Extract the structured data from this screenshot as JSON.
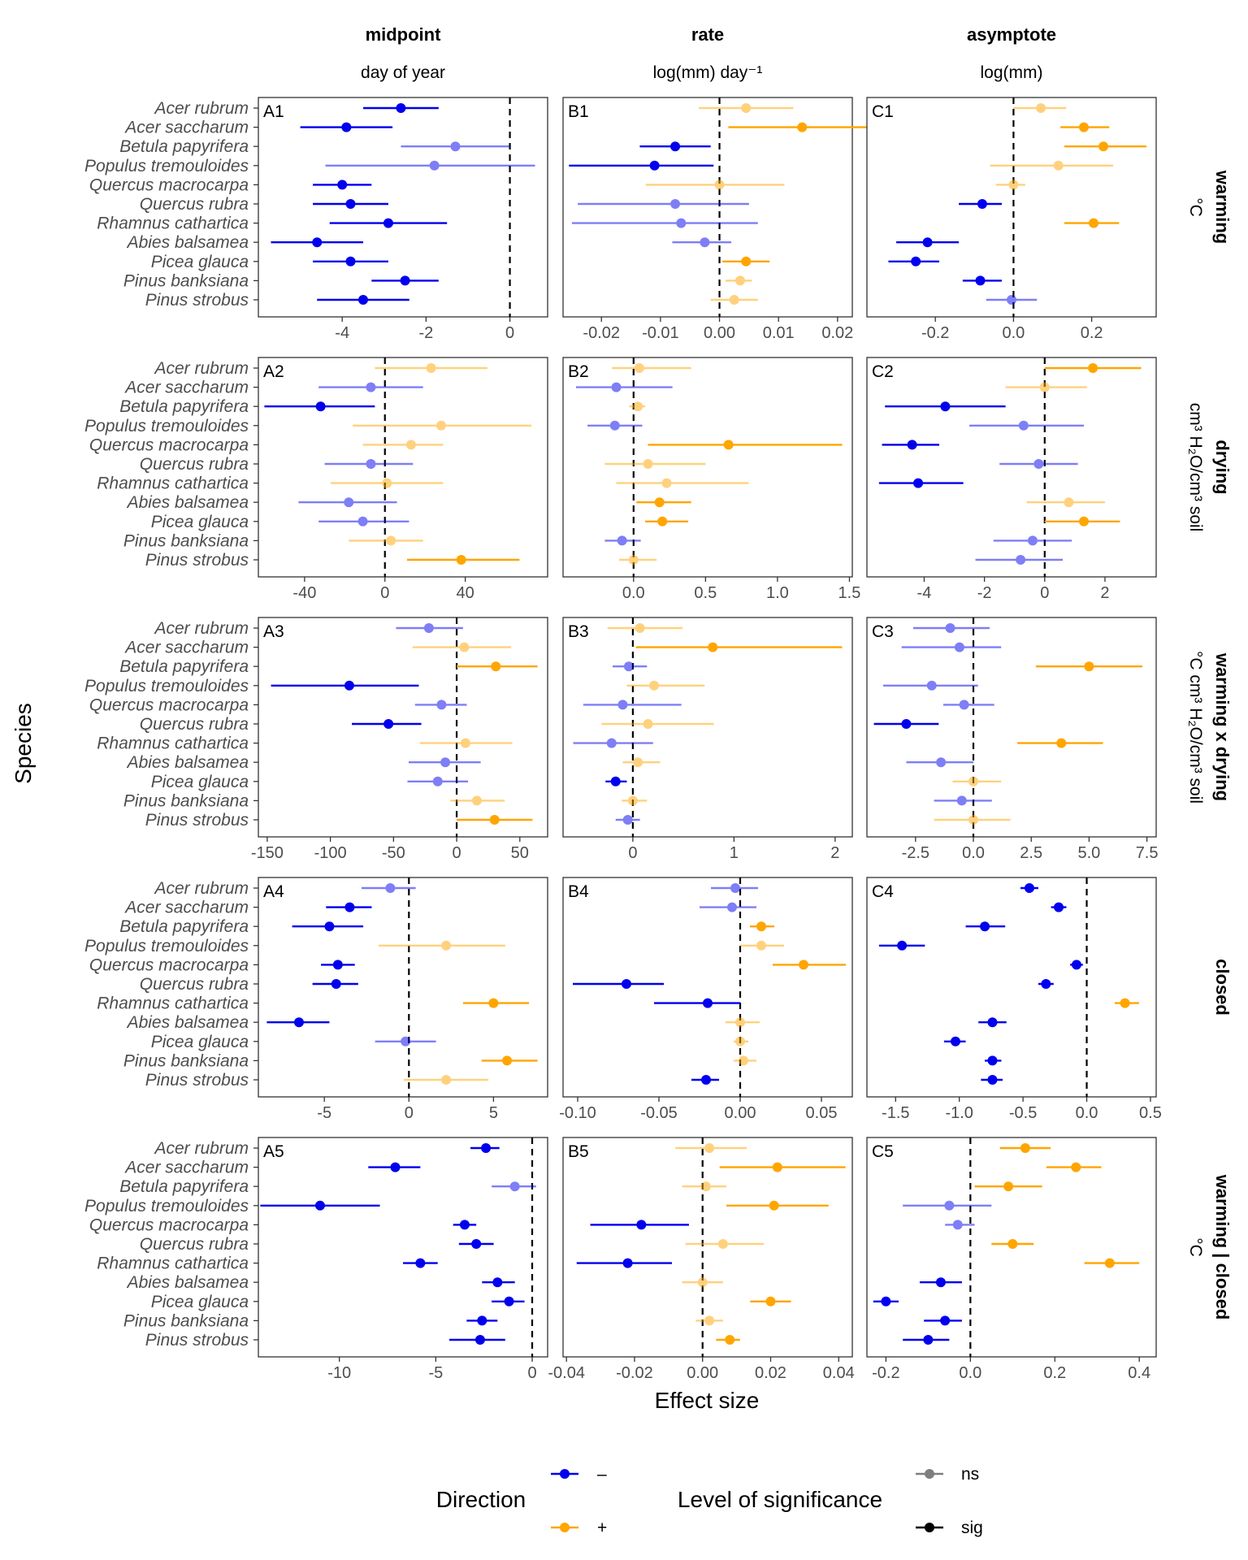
{
  "colors": {
    "neg": "#0000ee",
    "pos": "#ffa500",
    "ns_opacity": 0.5
  },
  "columns": [
    {
      "title": "midpoint",
      "unit": "day of year"
    },
    {
      "title": "rate",
      "unit": "log(mm) day⁻¹"
    },
    {
      "title": "asymptote",
      "unit": "log(mm)"
    }
  ],
  "rows": [
    {
      "title": "warming",
      "unit": "°C"
    },
    {
      "title": "drying",
      "unit": "cm³ H₂O/cm³ soil"
    },
    {
      "title": "warming x drying",
      "unit": "°C cm³ H₂O/cm³ soil"
    },
    {
      "title": "closed",
      "unit": ""
    },
    {
      "title": "warming | closed",
      "unit": "°C"
    }
  ],
  "species": [
    "Acer rubrum",
    "Acer saccharum",
    "Betula papyrifera",
    "Populus tremouloides",
    "Quercus macrocarpa",
    "Quercus rubra",
    "Rhamnus cathartica",
    "Abies balsamea",
    "Picea glauca",
    "Pinus banksiana",
    "Pinus strobus"
  ],
  "axis_labels": {
    "x": "Effect size",
    "y": "Species"
  },
  "legend": {
    "direction_title": "Direction",
    "direction_items": [
      "–",
      "+"
    ],
    "significance_title": "Level of significance",
    "significance_items": [
      "ns",
      "sig"
    ]
  },
  "chart_data": [
    {
      "label": "A1",
      "row": 0,
      "col": 0,
      "type": "scatter",
      "xlim": [
        -6.0,
        0.9
      ],
      "ticks": [
        -4,
        -2,
        0
      ],
      "tick_labels": [
        "-4",
        "-2",
        "0"
      ],
      "zero": 0,
      "points": [
        [
          -2.6,
          -3.5,
          -1.7,
          1
        ],
        [
          -3.9,
          -5.0,
          -2.8,
          1
        ],
        [
          -1.3,
          -2.6,
          0.0,
          0
        ],
        [
          -1.8,
          -4.4,
          0.6,
          0
        ],
        [
          -4.0,
          -4.7,
          -3.3,
          1
        ],
        [
          -3.8,
          -4.7,
          -2.9,
          1
        ],
        [
          -2.9,
          -4.3,
          -1.5,
          1
        ],
        [
          -4.6,
          -5.7,
          -3.5,
          1
        ],
        [
          -3.8,
          -4.7,
          -2.9,
          1
        ],
        [
          -2.5,
          -3.3,
          -1.7,
          1
        ],
        [
          -3.5,
          -4.6,
          -2.4,
          1
        ]
      ]
    },
    {
      "label": "B1",
      "row": 0,
      "col": 1,
      "type": "scatter",
      "xlim": [
        -0.0265,
        0.0225
      ],
      "ticks": [
        -0.02,
        -0.01,
        0,
        0.01,
        0.02
      ],
      "tick_labels": [
        "-0.02",
        "-0.01",
        "0.00",
        "0.01",
        "0.02"
      ],
      "zero": 0,
      "points": [
        [
          0.0045,
          -0.0035,
          0.0125,
          0
        ],
        [
          0.014,
          0.0015,
          0.025,
          1
        ],
        [
          -0.0075,
          -0.0135,
          -0.0015,
          1
        ],
        [
          -0.011,
          -0.0255,
          -0.001,
          1
        ],
        [
          0.0,
          -0.0125,
          0.011,
          0
        ],
        [
          -0.0075,
          -0.024,
          0.005,
          0
        ],
        [
          -0.0065,
          -0.025,
          0.0065,
          0
        ],
        [
          -0.0025,
          -0.008,
          0.002,
          0
        ],
        [
          0.0045,
          0.0005,
          0.0085,
          1
        ],
        [
          0.0035,
          0.001,
          0.0055,
          0
        ],
        [
          0.0025,
          -0.0015,
          0.0065,
          0
        ]
      ]
    },
    {
      "label": "C1",
      "row": 0,
      "col": 2,
      "type": "scatter",
      "xlim": [
        -0.375,
        0.365
      ],
      "ticks": [
        -0.2,
        0,
        0.2
      ],
      "tick_labels": [
        "-0.2",
        "0.0",
        "0.2"
      ],
      "zero": 0,
      "points": [
        [
          0.07,
          0.0,
          0.135,
          0
        ],
        [
          0.18,
          0.12,
          0.245,
          1
        ],
        [
          0.23,
          0.13,
          0.34,
          1
        ],
        [
          0.115,
          -0.06,
          0.255,
          0
        ],
        [
          0.0,
          -0.045,
          0.03,
          0
        ],
        [
          -0.08,
          -0.14,
          -0.03,
          1
        ],
        [
          0.205,
          0.13,
          0.27,
          1
        ],
        [
          -0.22,
          -0.3,
          -0.14,
          1
        ],
        [
          -0.25,
          -0.32,
          -0.19,
          1
        ],
        [
          -0.085,
          -0.13,
          -0.03,
          1
        ],
        [
          -0.005,
          -0.07,
          0.06,
          0
        ]
      ]
    },
    {
      "label": "A2",
      "row": 1,
      "col": 0,
      "type": "scatter",
      "xlim": [
        -63,
        81
      ],
      "ticks": [
        -40,
        0,
        40
      ],
      "tick_labels": [
        "-40",
        "0",
        "40"
      ],
      "zero": 0,
      "points": [
        [
          23,
          -5,
          51,
          0
        ],
        [
          -7,
          -33,
          19,
          0
        ],
        [
          -32,
          -60,
          -5,
          1
        ],
        [
          28,
          -16,
          73,
          0
        ],
        [
          13,
          -11,
          29,
          0
        ],
        [
          -7,
          -30,
          14,
          0
        ],
        [
          1,
          -27,
          29,
          0
        ],
        [
          -18,
          -43,
          6,
          0
        ],
        [
          -11,
          -33,
          12,
          0
        ],
        [
          3,
          -18,
          19,
          0
        ],
        [
          38,
          11,
          67,
          1
        ]
      ]
    },
    {
      "label": "B2",
      "row": 1,
      "col": 1,
      "type": "scatter",
      "xlim": [
        -0.49,
        1.52
      ],
      "ticks": [
        0,
        0.5,
        1.0,
        1.5
      ],
      "tick_labels": [
        "0.0",
        "0.5",
        "1.0",
        "1.5"
      ],
      "zero": 0,
      "points": [
        [
          0.04,
          -0.15,
          0.4,
          0
        ],
        [
          -0.12,
          -0.4,
          0.27,
          0
        ],
        [
          0.03,
          -0.03,
          0.08,
          0
        ],
        [
          -0.13,
          -0.32,
          0.06,
          0
        ],
        [
          0.66,
          0.1,
          1.45,
          1
        ],
        [
          0.1,
          -0.2,
          0.5,
          0
        ],
        [
          0.23,
          -0.12,
          0.8,
          0
        ],
        [
          0.18,
          0.02,
          0.4,
          1
        ],
        [
          0.2,
          0.08,
          0.38,
          1
        ],
        [
          -0.08,
          -0.2,
          0.05,
          0
        ],
        [
          0.0,
          -0.1,
          0.16,
          0
        ]
      ]
    },
    {
      "label": "C2",
      "row": 1,
      "col": 2,
      "type": "scatter",
      "xlim": [
        -5.9,
        3.7
      ],
      "ticks": [
        -4,
        -2,
        0,
        2
      ],
      "tick_labels": [
        "-4",
        "-2",
        "0",
        "2"
      ],
      "zero": 0,
      "points": [
        [
          1.6,
          0.0,
          3.2,
          1
        ],
        [
          0.0,
          -1.3,
          1.4,
          0
        ],
        [
          -3.3,
          -5.3,
          -1.3,
          1
        ],
        [
          -0.7,
          -2.5,
          1.3,
          0
        ],
        [
          -4.4,
          -5.4,
          -3.5,
          1
        ],
        [
          -0.2,
          -1.5,
          1.1,
          0
        ],
        [
          -4.2,
          -5.5,
          -2.7,
          1
        ],
        [
          0.8,
          -0.6,
          2.0,
          0
        ],
        [
          1.3,
          0.0,
          2.5,
          1
        ],
        [
          -0.4,
          -1.7,
          0.9,
          0
        ],
        [
          -0.8,
          -2.3,
          0.6,
          0
        ]
      ]
    },
    {
      "label": "A3",
      "row": 2,
      "col": 0,
      "type": "scatter",
      "xlim": [
        -157,
        72
      ],
      "ticks": [
        -150,
        -100,
        -50,
        0,
        50
      ],
      "tick_labels": [
        "-150",
        "-100",
        "-50",
        "0",
        "50"
      ],
      "zero": 0,
      "points": [
        [
          -22,
          -48,
          5,
          0
        ],
        [
          6,
          -35,
          43,
          0
        ],
        [
          31,
          0,
          64,
          1
        ],
        [
          -85,
          -147,
          -30,
          1
        ],
        [
          -12,
          -33,
          8,
          0
        ],
        [
          -54,
          -83,
          -28,
          1
        ],
        [
          7,
          -29,
          44,
          0
        ],
        [
          -9,
          -38,
          19,
          0
        ],
        [
          -15,
          -39,
          9,
          0
        ],
        [
          16,
          -5,
          38,
          0
        ],
        [
          30,
          0,
          60,
          1
        ]
      ]
    },
    {
      "label": "B3",
      "row": 2,
      "col": 1,
      "type": "scatter",
      "xlim": [
        -0.69,
        2.17
      ],
      "ticks": [
        0,
        1,
        2
      ],
      "tick_labels": [
        "0",
        "1",
        "2"
      ],
      "zero": 0,
      "points": [
        [
          0.07,
          -0.25,
          0.49,
          0
        ],
        [
          0.79,
          0.03,
          2.07,
          1
        ],
        [
          -0.04,
          -0.2,
          0.14,
          0
        ],
        [
          0.21,
          -0.06,
          0.71,
          0
        ],
        [
          -0.1,
          -0.49,
          0.48,
          0
        ],
        [
          0.15,
          -0.31,
          0.8,
          0
        ],
        [
          -0.21,
          -0.59,
          0.2,
          0
        ],
        [
          0.05,
          -0.1,
          0.27,
          0
        ],
        [
          -0.17,
          -0.27,
          -0.06,
          1
        ],
        [
          0.0,
          -0.11,
          0.14,
          0
        ],
        [
          -0.05,
          -0.17,
          0.07,
          0
        ]
      ]
    },
    {
      "label": "C3",
      "row": 2,
      "col": 2,
      "type": "scatter",
      "xlim": [
        -4.6,
        7.9
      ],
      "ticks": [
        -2.5,
        0,
        2.5,
        5.0,
        7.5
      ],
      "tick_labels": [
        "-2.5",
        "0.0",
        "2.5",
        "5.0",
        "7.5"
      ],
      "zero": 0,
      "points": [
        [
          -1.0,
          -2.6,
          0.7,
          0
        ],
        [
          -0.6,
          -3.1,
          1.2,
          0
        ],
        [
          5.0,
          2.7,
          7.3,
          1
        ],
        [
          -1.8,
          -3.9,
          0.2,
          0
        ],
        [
          -0.4,
          -1.3,
          0.9,
          0
        ],
        [
          -2.9,
          -4.3,
          -1.5,
          1
        ],
        [
          3.8,
          1.9,
          5.6,
          1
        ],
        [
          -1.4,
          -2.9,
          0.0,
          0
        ],
        [
          0.0,
          -0.9,
          1.2,
          0
        ],
        [
          -0.5,
          -1.7,
          0.8,
          0
        ],
        [
          0.0,
          -1.7,
          1.6,
          0
        ]
      ]
    },
    {
      "label": "A4",
      "row": 3,
      "col": 0,
      "type": "scatter",
      "xlim": [
        -8.9,
        8.2
      ],
      "ticks": [
        -5,
        0,
        5
      ],
      "tick_labels": [
        "-5",
        "0",
        "5"
      ],
      "zero": 0,
      "points": [
        [
          -1.1,
          -2.8,
          0.4,
          0
        ],
        [
          -3.5,
          -4.9,
          -2.2,
          1
        ],
        [
          -4.7,
          -6.9,
          -2.7,
          1
        ],
        [
          2.2,
          -1.8,
          5.7,
          0
        ],
        [
          -4.2,
          -5.2,
          -3.2,
          1
        ],
        [
          -4.3,
          -5.7,
          -3.0,
          1
        ],
        [
          5.0,
          3.2,
          7.1,
          1
        ],
        [
          -6.5,
          -8.4,
          -4.7,
          1
        ],
        [
          -0.2,
          -2.0,
          1.6,
          0
        ],
        [
          5.8,
          4.3,
          7.6,
          1
        ],
        [
          2.2,
          -0.3,
          4.7,
          0
        ]
      ]
    },
    {
      "label": "B4",
      "row": 3,
      "col": 1,
      "type": "scatter",
      "xlim": [
        -0.109,
        0.069
      ],
      "ticks": [
        -0.1,
        -0.05,
        0,
        0.05
      ],
      "tick_labels": [
        "-0.10",
        "-0.05",
        "0.00",
        "0.05"
      ],
      "zero": 0,
      "points": [
        [
          -0.003,
          -0.018,
          0.011,
          0
        ],
        [
          -0.005,
          -0.025,
          0.01,
          0
        ],
        [
          0.013,
          0.006,
          0.021,
          1
        ],
        [
          0.013,
          0.0,
          0.027,
          0
        ],
        [
          0.039,
          0.02,
          0.065,
          1
        ],
        [
          -0.07,
          -0.103,
          -0.047,
          1
        ],
        [
          -0.02,
          -0.053,
          0.0,
          1
        ],
        [
          0.0,
          -0.009,
          0.012,
          0
        ],
        [
          0.0,
          -0.004,
          0.005,
          0
        ],
        [
          0.002,
          -0.004,
          0.01,
          0
        ],
        [
          -0.021,
          -0.03,
          -0.013,
          1
        ]
      ]
    },
    {
      "label": "C4",
      "row": 3,
      "col": 2,
      "type": "scatter",
      "xlim": [
        -1.725,
        0.545
      ],
      "ticks": [
        -1.5,
        -1.0,
        -0.5,
        0,
        0.5
      ],
      "tick_labels": [
        "-1.5",
        "-1.0",
        "-0.5",
        "0.0",
        "0.5"
      ],
      "zero": 0,
      "points": [
        [
          -0.45,
          -0.52,
          -0.38,
          1
        ],
        [
          -0.22,
          -0.28,
          -0.16,
          1
        ],
        [
          -0.8,
          -0.95,
          -0.64,
          1
        ],
        [
          -1.45,
          -1.63,
          -1.27,
          1
        ],
        [
          -0.08,
          -0.13,
          -0.03,
          1
        ],
        [
          -0.32,
          -0.38,
          -0.26,
          1
        ],
        [
          0.3,
          0.22,
          0.41,
          1
        ],
        [
          -0.74,
          -0.85,
          -0.63,
          1
        ],
        [
          -1.03,
          -1.12,
          -0.95,
          1
        ],
        [
          -0.74,
          -0.8,
          -0.67,
          1
        ],
        [
          -0.74,
          -0.83,
          -0.66,
          1
        ]
      ]
    },
    {
      "label": "A5",
      "row": 4,
      "col": 0,
      "type": "scatter",
      "xlim": [
        -14.2,
        0.8
      ],
      "ticks": [
        -10,
        -5,
        0
      ],
      "tick_labels": [
        "-10",
        "-5",
        "0"
      ],
      "zero": 0,
      "points": [
        [
          -2.4,
          -3.2,
          -1.7,
          1
        ],
        [
          -7.1,
          -8.5,
          -5.8,
          1
        ],
        [
          -0.9,
          -2.1,
          0.2,
          0
        ],
        [
          -11.0,
          -14.1,
          -7.9,
          1
        ],
        [
          -3.5,
          -4.1,
          -2.9,
          1
        ],
        [
          -2.9,
          -3.8,
          -2.0,
          1
        ],
        [
          -5.8,
          -6.7,
          -4.9,
          1
        ],
        [
          -1.8,
          -2.6,
          -0.9,
          1
        ],
        [
          -1.2,
          -2.1,
          -0.4,
          1
        ],
        [
          -2.6,
          -3.4,
          -1.8,
          1
        ],
        [
          -2.7,
          -4.3,
          -1.4,
          1
        ]
      ]
    },
    {
      "label": "B5",
      "row": 4,
      "col": 1,
      "type": "scatter",
      "xlim": [
        -0.041,
        0.044
      ],
      "ticks": [
        -0.04,
        -0.02,
        0,
        0.02,
        0.04
      ],
      "tick_labels": [
        "-0.04",
        "-0.02",
        "0.00",
        "0.02",
        "0.04"
      ],
      "zero": 0,
      "points": [
        [
          0.002,
          -0.008,
          0.013,
          0
        ],
        [
          0.022,
          0.005,
          0.042,
          1
        ],
        [
          0.001,
          -0.006,
          0.007,
          0
        ],
        [
          0.021,
          0.007,
          0.037,
          1
        ],
        [
          -0.018,
          -0.033,
          -0.004,
          1
        ],
        [
          0.006,
          -0.005,
          0.018,
          0
        ],
        [
          -0.022,
          -0.037,
          -0.009,
          1
        ],
        [
          0.0,
          -0.006,
          0.006,
          0
        ],
        [
          0.02,
          0.014,
          0.026,
          1
        ],
        [
          0.002,
          -0.002,
          0.006,
          0
        ],
        [
          0.008,
          0.004,
          0.011,
          1
        ]
      ]
    },
    {
      "label": "C5",
      "row": 4,
      "col": 2,
      "type": "scatter",
      "xlim": [
        -0.245,
        0.44
      ],
      "ticks": [
        -0.2,
        0,
        0.2,
        0.4
      ],
      "tick_labels": [
        "-0.2",
        "0.0",
        "0.2",
        "0.4"
      ],
      "zero": 0,
      "points": [
        [
          0.13,
          0.07,
          0.19,
          1
        ],
        [
          0.25,
          0.18,
          0.31,
          1
        ],
        [
          0.09,
          0.01,
          0.17,
          1
        ],
        [
          -0.05,
          -0.16,
          0.05,
          0
        ],
        [
          -0.03,
          -0.06,
          0.01,
          0
        ],
        [
          0.1,
          0.05,
          0.15,
          1
        ],
        [
          0.33,
          0.27,
          0.4,
          1
        ],
        [
          -0.07,
          -0.12,
          -0.02,
          1
        ],
        [
          -0.2,
          -0.23,
          -0.17,
          1
        ],
        [
          -0.06,
          -0.11,
          -0.02,
          1
        ],
        [
          -0.1,
          -0.16,
          -0.05,
          1
        ]
      ]
    }
  ]
}
